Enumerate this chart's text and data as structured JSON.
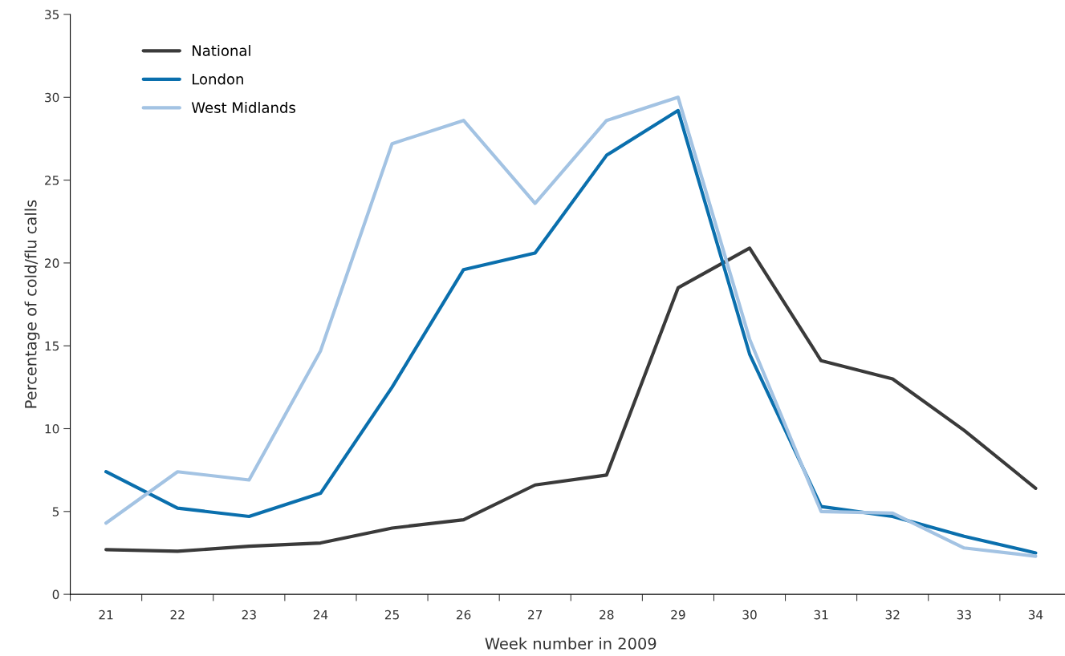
{
  "chart_data": {
    "type": "line",
    "xlabel": "Week number in 2009",
    "ylabel": "Percentage of cold/flu calls",
    "categories": [
      "21",
      "22",
      "23",
      "24",
      "25",
      "26",
      "27",
      "28",
      "29",
      "30",
      "31",
      "32",
      "33",
      "34"
    ],
    "series": [
      {
        "name": "National",
        "color": "#3a3a3a",
        "values": [
          2.7,
          2.6,
          2.9,
          3.1,
          4.0,
          4.5,
          6.6,
          7.2,
          18.5,
          20.9,
          14.1,
          13.0,
          9.9,
          6.4
        ]
      },
      {
        "name": "London",
        "color": "#0a6fad",
        "values": [
          7.4,
          5.2,
          4.7,
          6.1,
          12.5,
          19.6,
          20.6,
          26.5,
          29.2,
          14.5,
          5.3,
          4.7,
          3.5,
          2.5
        ]
      },
      {
        "name": "West Midlands",
        "color": "#a3c3e3",
        "values": [
          4.3,
          7.4,
          6.9,
          14.7,
          27.2,
          28.6,
          23.6,
          28.6,
          30.0,
          15.4,
          5.0,
          4.9,
          2.8,
          2.3
        ]
      }
    ],
    "ylim": [
      0,
      35
    ],
    "yticks": [
      0,
      5,
      10,
      15,
      20,
      25,
      30,
      35
    ],
    "grid": false,
    "legend": "top left",
    "marker": "none",
    "line_style": "solid"
  }
}
